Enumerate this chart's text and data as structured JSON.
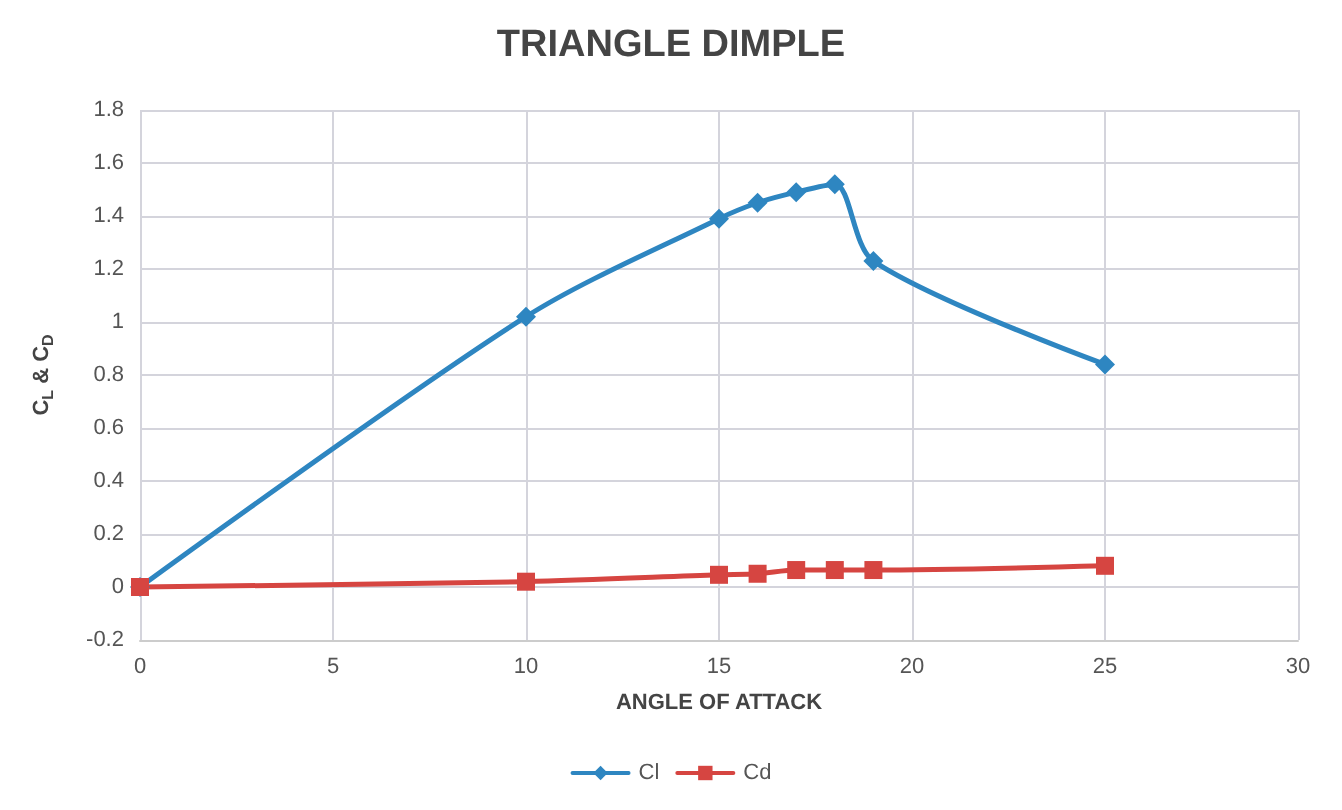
{
  "chart_data": {
    "type": "line",
    "title": "TRIANGLE DIMPLE",
    "xlabel": "ANGLE OF ATTACK",
    "ylabel": "C$_{L}$ & C$_{D}$",
    "x": [
      0,
      10,
      15,
      16,
      17,
      18,
      19,
      25
    ],
    "series": [
      {
        "name": "Cl",
        "color": "#2e86c1",
        "marker": "diamond",
        "values": [
          0,
          1.02,
          1.39,
          1.45,
          1.49,
          1.52,
          1.23,
          0.84
        ]
      },
      {
        "name": "Cd",
        "color": "#d64541",
        "marker": "square",
        "values": [
          0,
          0.02,
          0.046,
          0.05,
          0.064,
          0.064,
          0.064,
          0.08
        ]
      }
    ],
    "xlim": [
      0,
      30
    ],
    "xticks": [
      0,
      5,
      10,
      15,
      20,
      25,
      30
    ],
    "ylim": [
      -0.2,
      1.8
    ],
    "yticks": [
      -0.2,
      0,
      0.2,
      0.4,
      0.6,
      0.8,
      1,
      1.2,
      1.4,
      1.6,
      1.8
    ],
    "grid": true,
    "legend": "bottom",
    "line_style": "solid"
  }
}
